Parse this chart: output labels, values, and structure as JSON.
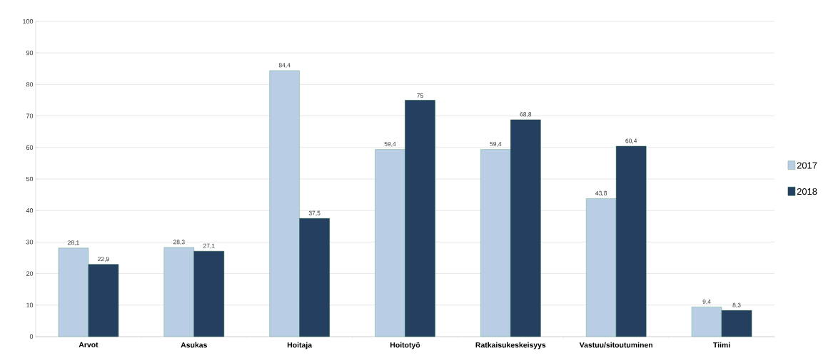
{
  "chart_data": {
    "type": "bar",
    "categories": [
      "Arvot",
      "Asukas",
      "Hoitaja",
      "Hoitotyö",
      "Ratkaisukeskeisyys",
      "Vastuu/sitoutuminen",
      "Tiimi"
    ],
    "series": [
      {
        "name": "2017",
        "color": "#b9cde5",
        "values": [
          28.1,
          28.3,
          84.4,
          59.4,
          59.4,
          43.8,
          9.4
        ],
        "value_labels": [
          "28,1",
          "28,3",
          "84,4",
          "59,4",
          "59,4",
          "43,8",
          "9,4"
        ]
      },
      {
        "name": "2018",
        "color": "#243f60",
        "values": [
          22.9,
          27.1,
          37.5,
          75,
          68.8,
          60.4,
          8.3
        ],
        "value_labels": [
          "22,9",
          "27,1",
          "37,5",
          "75",
          "68,8",
          "60,4",
          "8,3"
        ]
      }
    ],
    "ylim": [
      0,
      100
    ],
    "yticks": [
      0,
      10,
      20,
      30,
      40,
      50,
      60,
      70,
      80,
      90,
      100
    ],
    "grid": "y",
    "legend": "right"
  }
}
